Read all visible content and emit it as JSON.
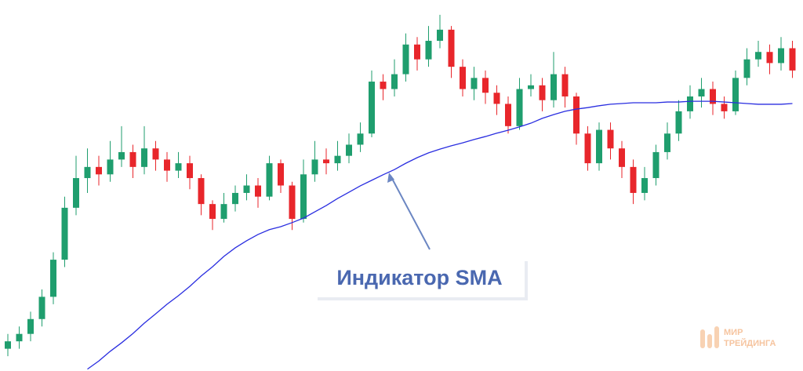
{
  "chart_data": {
    "type": "candlestick",
    "ylim": [
      0,
      100
    ],
    "up_color": "#1f9e6e",
    "down_color": "#e8262b",
    "open": [
      6,
      8,
      10,
      14,
      20,
      30,
      44,
      52,
      55,
      53,
      57,
      59,
      55,
      60,
      57,
      54,
      56,
      52,
      45,
      41,
      45,
      48,
      50,
      47,
      56,
      50,
      41,
      53,
      57,
      56,
      58,
      61,
      64,
      78,
      76,
      80,
      88,
      84,
      89,
      92,
      82,
      76,
      79,
      75,
      72,
      66,
      76,
      77,
      73,
      80,
      74,
      64,
      56,
      65,
      60,
      55,
      48,
      52,
      59,
      64,
      70,
      74,
      76,
      72,
      70,
      79,
      84,
      86,
      83,
      87
    ],
    "high": [
      10,
      12,
      16,
      22,
      32,
      47,
      58,
      60,
      58,
      62,
      66,
      61,
      66,
      62,
      59,
      59,
      58,
      53,
      46,
      48,
      50,
      53,
      52,
      58,
      57,
      51,
      57,
      62,
      60,
      62,
      64,
      67,
      81,
      80,
      84,
      91,
      90,
      93,
      96,
      93,
      84,
      82,
      81,
      77,
      74,
      79,
      80,
      79,
      86,
      82,
      75,
      66,
      67,
      67,
      62,
      57,
      55,
      61,
      67,
      73,
      77,
      79,
      78,
      74,
      81,
      87,
      89,
      88,
      90,
      89
    ],
    "low": [
      4,
      6,
      8,
      12,
      18,
      28,
      42,
      48,
      50,
      51,
      55,
      52,
      53,
      54,
      51,
      52,
      49,
      42,
      38,
      40,
      43,
      46,
      44,
      46,
      48,
      38,
      40,
      51,
      53,
      54,
      56,
      59,
      63,
      73,
      74,
      78,
      81,
      82,
      87,
      79,
      74,
      73,
      72,
      69,
      64,
      65,
      74,
      70,
      71,
      71,
      61,
      54,
      54,
      57,
      52,
      45,
      46,
      50,
      57,
      62,
      68,
      71,
      69,
      68,
      69,
      77,
      82,
      80,
      81,
      79
    ],
    "close": [
      8,
      10,
      14,
      20,
      30,
      44,
      52,
      55,
      53,
      57,
      59,
      55,
      60,
      57,
      54,
      56,
      52,
      45,
      41,
      45,
      48,
      50,
      47,
      56,
      50,
      41,
      53,
      57,
      56,
      58,
      61,
      64,
      78,
      76,
      80,
      88,
      84,
      89,
      92,
      82,
      76,
      79,
      75,
      72,
      66,
      76,
      77,
      73,
      80,
      74,
      64,
      56,
      65,
      60,
      55,
      48,
      52,
      59,
      64,
      70,
      74,
      76,
      72,
      70,
      79,
      84,
      86,
      83,
      87,
      81
    ],
    "sma": {
      "color": "#2a2ee0",
      "values": [
        null,
        null,
        null,
        null,
        null,
        null,
        null,
        0.5,
        2.7,
        5.3,
        7.6,
        10.1,
        12.9,
        15.4,
        18,
        20.3,
        22.8,
        25.6,
        28.1,
        30.9,
        33.2,
        35.1,
        36.8,
        38.1,
        38.9,
        40,
        41.2,
        42.9,
        44.6,
        46.5,
        48.2,
        49.9,
        51.4,
        52.9,
        54.3,
        56,
        57.5,
        58.8,
        59.8,
        60.7,
        61.5,
        62.4,
        63.2,
        64.1,
        64.9,
        65.8,
        66.8,
        68.1,
        69.1,
        70,
        70.6,
        71,
        71.5,
        71.9,
        72.1,
        72.3,
        72.3,
        72.3,
        72.5,
        72.5,
        72.7,
        72.7,
        72.7,
        72.5,
        72.3,
        72.1,
        71.9,
        71.9,
        71.9,
        72.1
      ]
    },
    "annotation": "Индикатор SMA",
    "watermark": [
      "МИР",
      "ТРЕЙДИНГА"
    ]
  }
}
